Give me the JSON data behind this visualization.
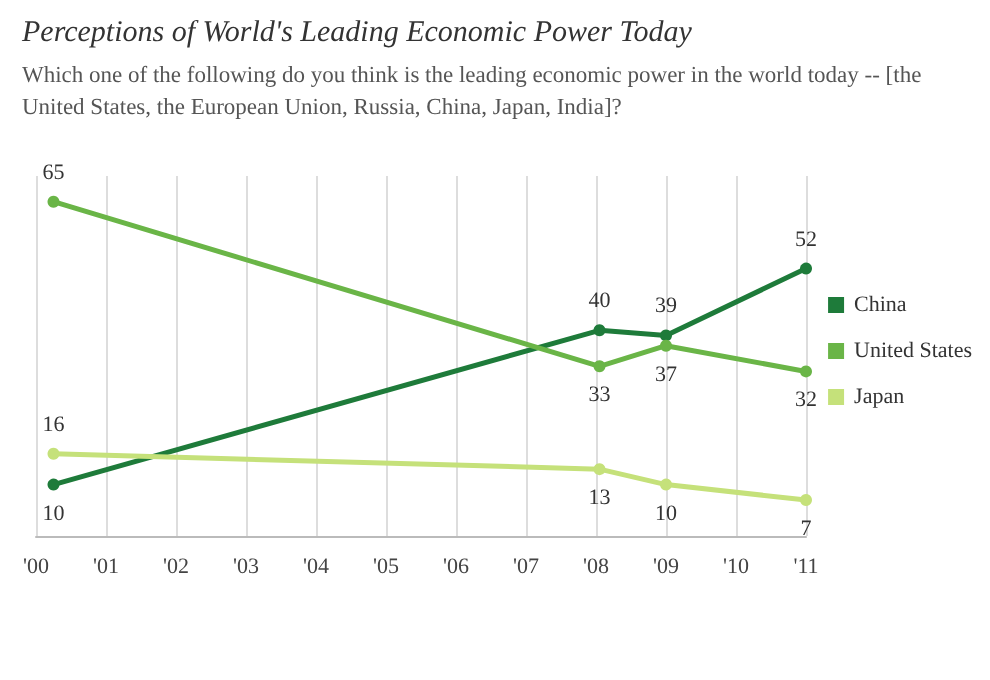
{
  "chart_data": {
    "type": "line",
    "title": "Perceptions of World's Leading Economic Power Today",
    "subtitle": "Which one of the following do you think is the leading economic power in the world today -- [the United States, the European Union, Russia, China, Japan, India]?",
    "x": [
      2000.25,
      2008.05,
      2009,
      2011
    ],
    "series": [
      {
        "name": "China",
        "color": "#1e7b3a",
        "values": [
          10,
          40,
          39,
          52
        ]
      },
      {
        "name": "United States",
        "color": "#6ab547",
        "values": [
          65,
          33,
          37,
          32
        ]
      },
      {
        "name": "Japan",
        "color": "#c5e17a",
        "values": [
          16,
          13,
          10,
          7
        ]
      }
    ],
    "xlim": [
      2000,
      2011
    ],
    "xticks": [
      {
        "value": 2000,
        "label": "'00"
      },
      {
        "value": 2001,
        "label": "'01"
      },
      {
        "value": 2002,
        "label": "'02"
      },
      {
        "value": 2003,
        "label": "'03"
      },
      {
        "value": 2004,
        "label": "'04"
      },
      {
        "value": 2005,
        "label": "'05"
      },
      {
        "value": 2006,
        "label": "'06"
      },
      {
        "value": 2007,
        "label": "'07"
      },
      {
        "value": 2008,
        "label": "'08"
      },
      {
        "value": 2009,
        "label": "'09"
      },
      {
        "value": 2010,
        "label": "'10"
      },
      {
        "value": 2011,
        "label": "'11"
      }
    ],
    "ylim": [
      0,
      70
    ],
    "tick_labels": "x",
    "grid": "x",
    "legend": "right",
    "marker": "circle",
    "line_style": "solid",
    "data_labels": true
  }
}
